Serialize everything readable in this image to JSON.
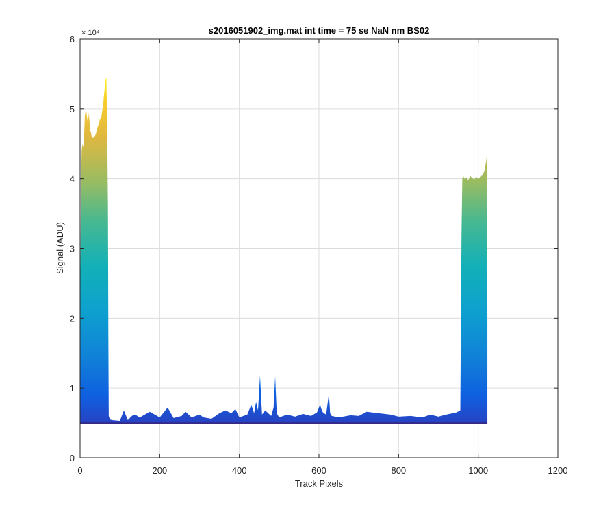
{
  "chart_data": {
    "type": "area",
    "title": "s2016051902_img.mat int time = 75 se  NaN nm BS02",
    "xlabel": "Track Pixels",
    "ylabel": "Signal (ADU)",
    "xlim": [
      0,
      1200
    ],
    "ylim": [
      0,
      60000
    ],
    "x_ticks": [
      0,
      200,
      400,
      600,
      800,
      1000,
      1200
    ],
    "y_ticks": [
      0,
      10000,
      20000,
      30000,
      40000,
      50000,
      60000
    ],
    "x_tick_labels": [
      "0",
      "200",
      "400",
      "600",
      "800",
      "1000",
      "1200"
    ],
    "y_tick_labels": [
      "0",
      "1",
      "2",
      "3",
      "4",
      "5",
      "6"
    ],
    "y_exponent_label": "× 10⁴",
    "grid": true,
    "colormap": "parula",
    "baseline": 5000,
    "x": [
      0,
      2,
      4,
      6,
      8,
      10,
      12,
      15,
      18,
      20,
      22,
      25,
      28,
      30,
      32,
      35,
      38,
      40,
      42,
      45,
      48,
      50,
      52,
      55,
      58,
      60,
      62,
      64,
      66,
      68,
      70,
      71,
      72,
      75,
      80,
      100,
      110,
      120,
      130,
      138,
      150,
      175,
      200,
      220,
      235,
      255,
      265,
      280,
      300,
      310,
      330,
      350,
      365,
      380,
      390,
      400,
      420,
      430,
      437,
      442,
      447,
      452,
      457,
      465,
      480,
      486,
      490,
      494,
      500,
      520,
      540,
      560,
      580,
      595,
      600,
      603,
      606,
      610,
      618,
      625,
      628,
      632,
      650,
      680,
      700,
      720,
      750,
      780,
      800,
      830,
      860,
      880,
      900,
      920,
      945,
      955,
      958,
      960,
      962,
      965,
      970,
      975,
      980,
      985,
      990,
      995,
      1000,
      1005,
      1010,
      1015,
      1020,
      1022,
      1023
    ],
    "y": [
      18000,
      38000,
      44000,
      45000,
      44500,
      46000,
      49000,
      50000,
      48500,
      48000,
      49500,
      47000,
      46500,
      45500,
      46000,
      45800,
      46200,
      46500,
      47000,
      47500,
      48000,
      48700,
      48300,
      49500,
      50500,
      52000,
      53000,
      54200,
      54500,
      48000,
      36000,
      18000,
      6000,
      5500,
      5400,
      5300,
      6800,
      5400,
      6000,
      6200,
      5800,
      6600,
      5800,
      7200,
      5700,
      6000,
      6600,
      5800,
      6200,
      5800,
      5600,
      6400,
      6800,
      6400,
      7000,
      5800,
      6200,
      7600,
      6400,
      8000,
      6800,
      11800,
      6200,
      6800,
      6000,
      7200,
      11700,
      6400,
      5800,
      6200,
      5900,
      6300,
      6000,
      6500,
      7200,
      7600,
      7000,
      6500,
      6200,
      9200,
      6400,
      6000,
      5800,
      6100,
      6000,
      6600,
      6400,
      6200,
      5900,
      6000,
      5800,
      6200,
      5900,
      6200,
      6500,
      6800,
      32000,
      40000,
      40500,
      40000,
      40200,
      39800,
      40400,
      40100,
      39900,
      40300,
      40000,
      40200,
      40500,
      41000,
      42500,
      43500,
      20000
    ]
  }
}
